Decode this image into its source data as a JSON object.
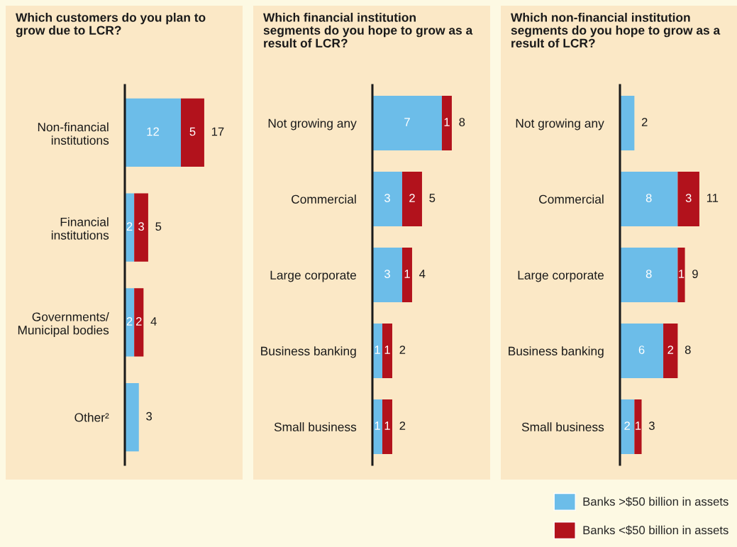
{
  "chart_data": [
    {
      "type": "bar",
      "orientation": "horizontal",
      "stacked": true,
      "title": "Which customers do you plan to\ngrow due to LCR?",
      "categories": [
        "Non-financial\ninstitutions",
        "Financial\ninstitutions",
        "Governments/\nMunicipal bodies",
        "Other²"
      ],
      "series": [
        {
          "color": "#6cbde9",
          "values": [
            12,
            2,
            2,
            3
          ],
          "value_labels": [
            "12",
            "2",
            "2",
            null
          ]
        },
        {
          "color": "#b2121c",
          "values": [
            5,
            3,
            2,
            null
          ],
          "value_labels": [
            "5",
            "3",
            "2",
            null
          ]
        }
      ],
      "totals": [
        "17",
        "5",
        "4",
        "3"
      ]
    },
    {
      "type": "bar",
      "orientation": "horizontal",
      "stacked": true,
      "title": "Which financial institution\nsegments do you hope to grow as a\nresult of LCR?",
      "categories": [
        "Not growing any",
        "Commercial",
        "Large corporate",
        "Business banking",
        "Small business"
      ],
      "series": [
        {
          "color": "#6cbde9",
          "values": [
            7,
            3,
            3,
            1,
            1
          ],
          "value_labels": [
            "7",
            "3",
            "3",
            "1",
            "1"
          ]
        },
        {
          "color": "#b2121c",
          "values": [
            1,
            2,
            1,
            1,
            1
          ],
          "value_labels": [
            "1",
            "2",
            "1",
            "1",
            "1"
          ]
        }
      ],
      "totals": [
        "8",
        "5",
        "4",
        "2",
        "2"
      ]
    },
    {
      "type": "bar",
      "orientation": "horizontal",
      "stacked": true,
      "title": "Which non-financial institution\nsegments do you hope to grow as a\nresult of LCR?",
      "categories": [
        "Not growing any",
        "Commercial",
        "Large corporate",
        "Business banking",
        "Small business"
      ],
      "series": [
        {
          "name": "Banks >$50 billion in assets",
          "color": "#6cbde9",
          "values": [
            2,
            8,
            8,
            6,
            2
          ],
          "value_labels": [
            null,
            "8",
            "8",
            "6",
            "2"
          ]
        },
        {
          "name": "Banks <$50 billion in assets",
          "color": "#b2121c",
          "values": [
            null,
            3,
            1,
            2,
            1
          ],
          "value_labels": [
            null,
            "3",
            "1",
            "2",
            "1"
          ]
        }
      ],
      "totals": [
        "2",
        "11",
        "9",
        "8",
        "3"
      ],
      "legend": "bottom"
    }
  ]
}
